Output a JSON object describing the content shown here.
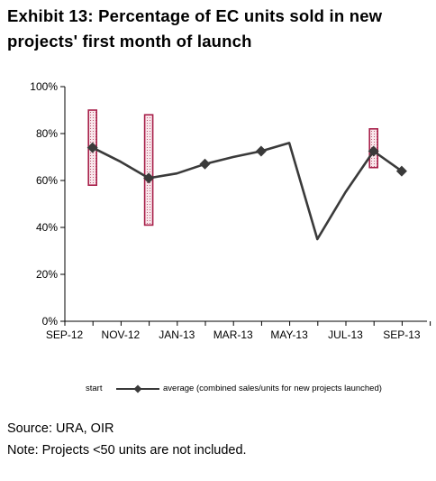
{
  "title": {
    "line1": "Exhibit 13: Percentage of EC units sold in new",
    "line2": "projects' first month of launch"
  },
  "legend": {
    "start_label": "start",
    "average_label": "average (combined sales/units for new projects launched)"
  },
  "notes": {
    "source": "Source: URA, OIR",
    "note": "Note: Projects <50 units are not included."
  },
  "colors": {
    "line": "#3a3a3a",
    "range_border": "#a8204a",
    "range_fill": "#f6dde4",
    "axis": "#000000"
  },
  "chart_data": {
    "type": "line",
    "title": "Exhibit 13: Percentage of EC units sold in new projects' first month of launch",
    "xlabel": "",
    "ylabel": "",
    "x_ticks": [
      "SEP-12",
      "NOV-12",
      "JAN-13",
      "MAR-13",
      "MAY-13",
      "JUL-13",
      "SEP-13"
    ],
    "y_ticks": [
      "0%",
      "20%",
      "40%",
      "60%",
      "80%",
      "100%"
    ],
    "ylim": [
      0,
      100
    ],
    "series": [
      {
        "name": "average (combined sales/units for new projects launched)",
        "type": "line",
        "points": [
          {
            "x": "OCT-12",
            "y": 74,
            "marker": true
          },
          {
            "x": "NOV-12",
            "y": 68,
            "marker": false
          },
          {
            "x": "DEC-12",
            "y": 61,
            "marker": true
          },
          {
            "x": "JAN-13",
            "y": 63,
            "marker": false
          },
          {
            "x": "FEB-13",
            "y": 67,
            "marker": true
          },
          {
            "x": "MAR-13",
            "y": 70,
            "marker": false
          },
          {
            "x": "APR-13",
            "y": 72.5,
            "marker": true
          },
          {
            "x": "MAY-13",
            "y": 76,
            "marker": false
          },
          {
            "x": "JUN-13",
            "y": 35,
            "marker": false
          },
          {
            "x": "JUL-13",
            "y": 55,
            "marker": false
          },
          {
            "x": "AUG-13",
            "y": 72.5,
            "marker": true
          },
          {
            "x": "SEP-13",
            "y": 64,
            "marker": true
          }
        ]
      },
      {
        "name": "start",
        "type": "range",
        "ranges": [
          {
            "x": "OCT-12",
            "low": 58,
            "high": 90
          },
          {
            "x": "DEC-12",
            "low": 41,
            "high": 88
          },
          {
            "x": "AUG-13",
            "low": 65.5,
            "high": 82
          }
        ]
      }
    ],
    "grid": false,
    "legend_position": "bottom"
  }
}
